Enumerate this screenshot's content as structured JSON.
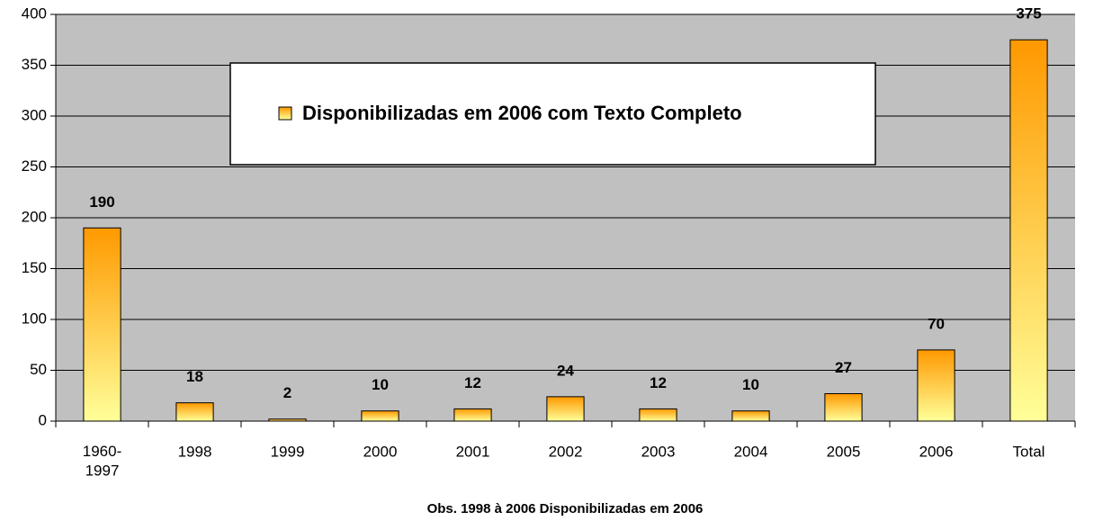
{
  "chart_data": {
    "type": "bar",
    "categories": [
      "1960-\n1997",
      "1998",
      "1999",
      "2000",
      "2001",
      "2002",
      "2003",
      "2004",
      "2005",
      "2006",
      "Total"
    ],
    "series": [
      {
        "name": "Disponibilizadas em 2006 com Texto Completo",
        "gradient": [
          "#ff9900",
          "#ffff99"
        ],
        "values": [
          190,
          18,
          2,
          10,
          12,
          24,
          12,
          10,
          27,
          70,
          375
        ]
      }
    ],
    "ylim": [
      0,
      400
    ],
    "yticks": [
      0,
      50,
      100,
      150,
      200,
      250,
      300,
      350,
      400
    ],
    "grid": true,
    "plot_background": "#c0c0c0",
    "x_axis_label": "Obs. 1998 à 2006 Disponibilizadas em 2006"
  }
}
